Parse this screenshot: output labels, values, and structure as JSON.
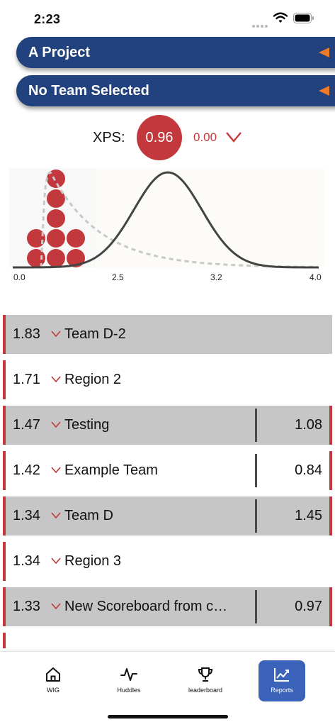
{
  "status_bar": {
    "time": "2:23"
  },
  "project_selector": {
    "label": "A Project"
  },
  "team_selector": {
    "label": "No Team Selected"
  },
  "xps": {
    "label": "XPS:",
    "value": "0.96",
    "delta": "0.00"
  },
  "chart": {
    "tick_labels": [
      "0.0",
      "2.5",
      "3.2",
      "4.0"
    ],
    "dot_stack_counts": [
      2,
      5,
      2
    ],
    "colors": {
      "dots": "#c2383d",
      "curve": "#444444",
      "dashed": "#c8c8c8"
    }
  },
  "rows": [
    {
      "value": "1.83",
      "name": "Team D-2",
      "score": "",
      "style": "gray"
    },
    {
      "value": "1.71",
      "name": "Region 2",
      "score": "",
      "style": "white"
    },
    {
      "value": "1.47",
      "name": "Testing",
      "score": "1.08",
      "style": "gray"
    },
    {
      "value": "1.42",
      "name": "Example Team",
      "score": "0.84",
      "style": "white"
    },
    {
      "value": "1.34",
      "name": "Team D",
      "score": "1.45",
      "style": "gray"
    },
    {
      "value": "1.34",
      "name": "Region 3",
      "score": "",
      "style": "white"
    },
    {
      "value": "1.33",
      "name": "New Scoreboard from c…",
      "score": "0.97",
      "style": "gray"
    }
  ],
  "tabs": [
    {
      "label": "WIG",
      "icon": "home-icon"
    },
    {
      "label": "Huddles",
      "icon": "pulse-icon"
    },
    {
      "label": "leaderboard",
      "icon": "trophy-icon"
    },
    {
      "label": "Reports",
      "icon": "chart-line-icon",
      "active": true
    }
  ],
  "colors": {
    "accent_navy": "#22417f",
    "accent_red": "#c2383d",
    "accent_orange": "#ee7a2b",
    "tab_active": "#3a63b9",
    "row_gray": "#c6c6c6"
  }
}
